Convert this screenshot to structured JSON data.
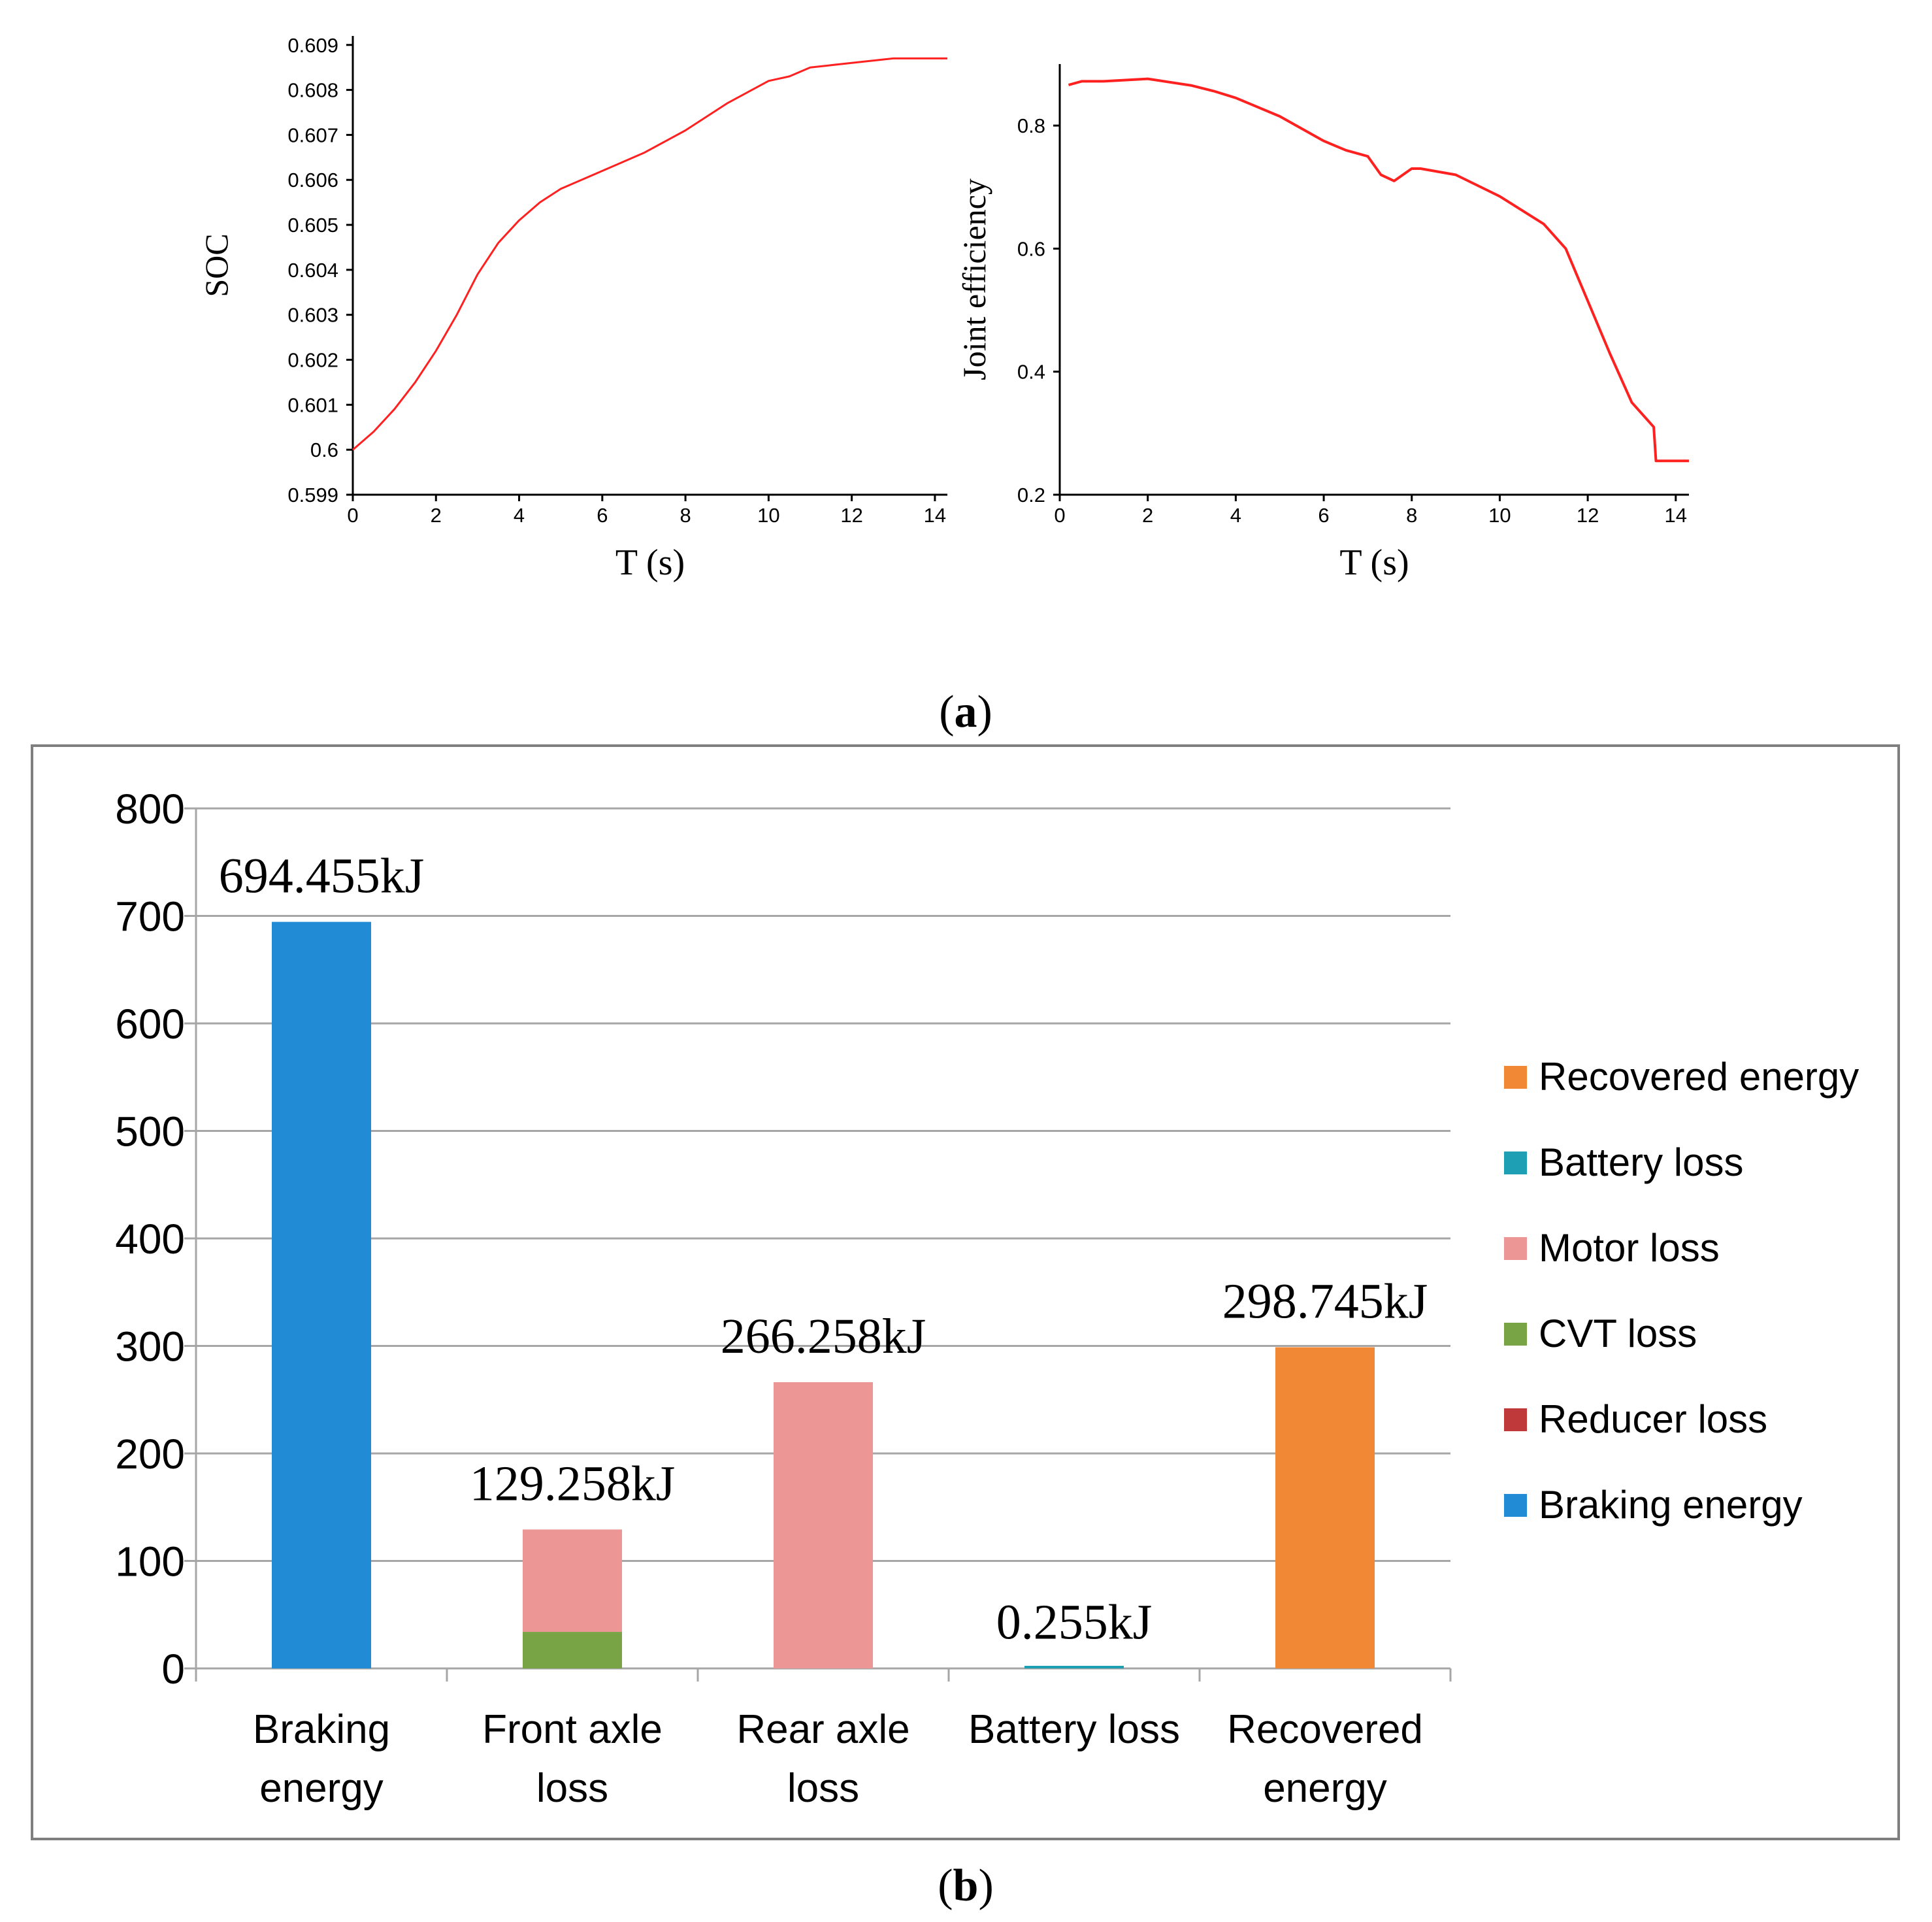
{
  "colors": {
    "line": "#ff2020",
    "axis": "#000000",
    "grid": "#a6a6a6",
    "frame": "#7f7f7f",
    "braking_energy": "#228bd6",
    "battery_loss": "#1e9fb3",
    "motor_loss": "#ec9796",
    "cvt_loss": "#79a445",
    "reducer_loss": "#c0393a",
    "recovered_energy": "#f18835"
  },
  "captions": {
    "a": "a",
    "b": "b"
  },
  "chart_data": [
    {
      "id": "soc",
      "type": "line",
      "title": "",
      "xlabel": "T (s)",
      "ylabel": "SOC",
      "xlim": [
        0,
        14.3
      ],
      "ylim": [
        0.599,
        0.6092
      ],
      "xticks": [
        0,
        2,
        4,
        6,
        8,
        10,
        12,
        14
      ],
      "yticks": [
        0.599,
        0.6,
        0.601,
        0.602,
        0.603,
        0.604,
        0.605,
        0.606,
        0.607,
        0.608,
        0.609
      ],
      "ytick_labels": [
        "0.599",
        "0.6",
        "0.601",
        "0.602",
        "0.603",
        "0.604",
        "0.605",
        "0.606",
        "0.607",
        "0.608",
        "0.609"
      ],
      "grid": false,
      "series": [
        {
          "name": "SOC",
          "x": [
            0,
            0.5,
            1,
            1.5,
            2,
            2.5,
            3,
            3.5,
            4,
            4.5,
            5,
            5.5,
            6,
            7,
            8,
            9,
            10,
            10.5,
            11,
            12,
            13,
            14,
            14.3
          ],
          "y": [
            0.6,
            0.6004,
            0.6009,
            0.6015,
            0.6022,
            0.603,
            0.6039,
            0.6046,
            0.6051,
            0.6055,
            0.6058,
            0.606,
            0.6062,
            0.6066,
            0.6071,
            0.6077,
            0.6082,
            0.6083,
            0.6085,
            0.6086,
            0.6087,
            0.6087,
            0.6087
          ]
        }
      ]
    },
    {
      "id": "joint-efficiency",
      "type": "line",
      "title": "",
      "xlabel": "T (s)",
      "ylabel": "Joint efficiency",
      "xlim": [
        0,
        14.3
      ],
      "ylim": [
        0.2,
        0.9
      ],
      "xticks": [
        0,
        2,
        4,
        6,
        8,
        10,
        12,
        14
      ],
      "yticks": [
        0.2,
        0.4,
        0.6,
        0.8
      ],
      "ytick_labels": [
        "0.2",
        "0.4",
        "0.6",
        "0.8"
      ],
      "grid": false,
      "series": [
        {
          "name": "Joint efficiency",
          "x": [
            0.2,
            0.5,
            1,
            1.5,
            2,
            3,
            3.5,
            4,
            5,
            5.5,
            6,
            6.5,
            7,
            7.3,
            7.6,
            8,
            8.2,
            9,
            10,
            11,
            11.5,
            12,
            12.5,
            13,
            13.5,
            13.55,
            14,
            14.3
          ],
          "y": [
            0.866,
            0.872,
            0.872,
            0.874,
            0.876,
            0.865,
            0.856,
            0.845,
            0.815,
            0.795,
            0.775,
            0.76,
            0.75,
            0.72,
            0.71,
            0.73,
            0.73,
            0.72,
            0.685,
            0.64,
            0.6,
            0.515,
            0.43,
            0.35,
            0.31,
            0.255,
            0.255,
            0.255
          ]
        }
      ]
    },
    {
      "id": "energy-flow",
      "type": "bar",
      "stacked": true,
      "title": "",
      "xlabel": "",
      "ylabel": "",
      "ylim": [
        0,
        800
      ],
      "yticks": [
        0,
        100,
        200,
        300,
        400,
        500,
        600,
        700,
        800
      ],
      "ytick_labels": [
        "0",
        "100",
        "200",
        "300",
        "400",
        "500",
        "600",
        "700",
        "800"
      ],
      "grid": true,
      "legend_position": "right",
      "categories": [
        [
          "Braking",
          "energy"
        ],
        [
          "Front axle",
          "loss"
        ],
        [
          "Rear axle",
          "loss"
        ],
        [
          "Battery loss"
        ],
        [
          "Recovered",
          "energy"
        ]
      ],
      "series": [
        {
          "name": "Braking energy",
          "color_key": "braking_energy",
          "values": [
            694.455,
            0,
            0,
            0,
            0
          ]
        },
        {
          "name": "Reducer loss",
          "color_key": "reducer_loss",
          "values": [
            0,
            0,
            0,
            0,
            0
          ]
        },
        {
          "name": "CVT loss",
          "color_key": "cvt_loss",
          "values": [
            0,
            34,
            0,
            0,
            0
          ]
        },
        {
          "name": "Motor loss",
          "color_key": "motor_loss",
          "values": [
            0,
            95.258,
            266.258,
            0,
            0
          ]
        },
        {
          "name": "Battery loss",
          "color_key": "battery_loss",
          "values": [
            0,
            0,
            0,
            0.255,
            0
          ]
        },
        {
          "name": "Recovered energy",
          "color_key": "recovered_energy",
          "values": [
            0,
            0,
            0,
            0,
            298.745
          ]
        }
      ],
      "legend_order": [
        "Recovered energy",
        "Battery loss",
        "Motor loss",
        "CVT loss",
        "Reducer loss",
        "Braking energy"
      ],
      "data_labels": [
        "694.455kJ",
        "129.258kJ",
        "266.258kJ",
        "0.255kJ",
        "298.745kJ"
      ]
    }
  ]
}
